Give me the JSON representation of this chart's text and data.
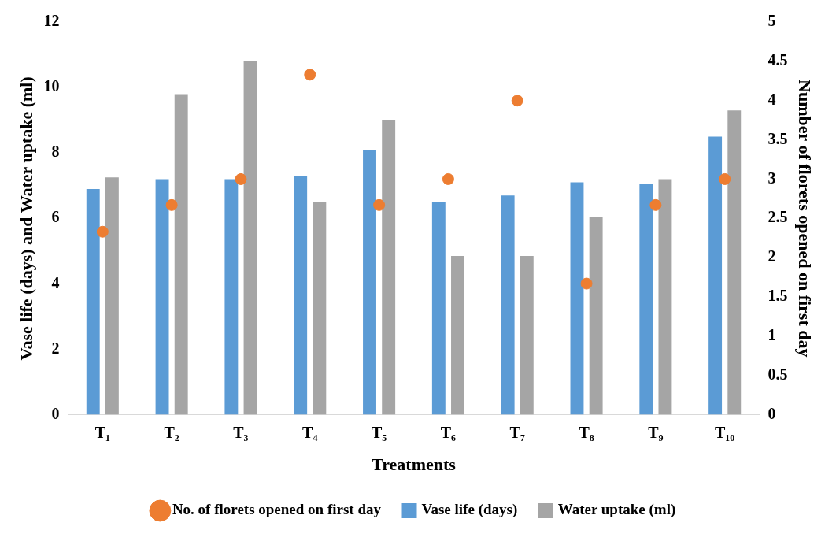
{
  "chart_data": {
    "type": "bar",
    "xlabel": "Treatments",
    "ylabel": "Vase life (days) and Water uptake (ml)",
    "y2label": "Number of florets opened on first day",
    "categories": [
      "T₁",
      "T₂",
      "T₃",
      "T₄",
      "T₅",
      "T₆",
      "T₇",
      "T₈",
      "T₉",
      "T₁₀"
    ],
    "series": [
      {
        "name": "Vase life (days)",
        "color": "#5b9bd5",
        "values": [
          6.9,
          7.2,
          7.2,
          7.3,
          8.1,
          6.5,
          6.7,
          7.1,
          7.05,
          8.5
        ]
      },
      {
        "name": "Water uptake (ml)",
        "color": "#a5a5a5",
        "values": [
          7.25,
          9.8,
          10.8,
          6.5,
          9.0,
          4.85,
          4.85,
          6.05,
          7.2,
          9.3
        ]
      },
      {
        "name": "No. of florets opened on first day",
        "type": "scatter",
        "axis": "y2",
        "color": "#ed7d31",
        "x": [
          "T₁",
          "T₂",
          "T₃",
          "T₄",
          "T₅",
          "T₆",
          "T₇",
          "T₈",
          "T₉",
          "T₁₀"
        ],
        "values": [
          2.33,
          2.67,
          3,
          4.33,
          2.67,
          3,
          4,
          1.67,
          2.67,
          3
        ]
      }
    ],
    "ylim": [
      0,
      12
    ],
    "yticks": [
      0,
      2,
      4,
      6,
      8,
      10,
      12
    ],
    "y2lim": [
      0,
      5
    ],
    "y2ticks": [
      0,
      0.5,
      1,
      1.5,
      2,
      2.5,
      3,
      3.5,
      4,
      4.5,
      5
    ],
    "grid": false,
    "legend": "bottom",
    "marker": "circle"
  }
}
